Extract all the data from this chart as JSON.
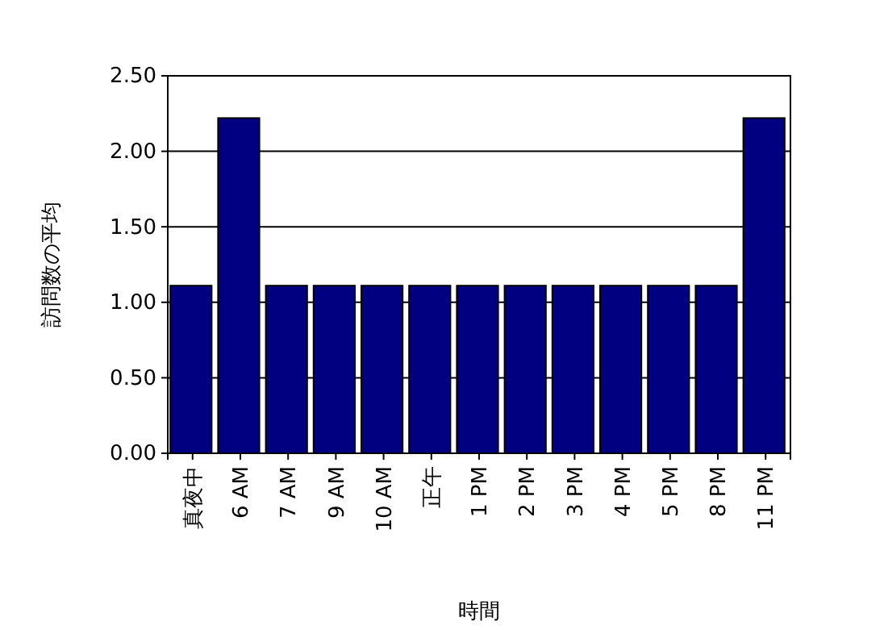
{
  "chart_data": {
    "type": "bar",
    "xlabel": "時間",
    "ylabel": "訪問数の平均",
    "categories": [
      "真夜中",
      "6 AM",
      "7 AM",
      "9 AM",
      "10 AM",
      "正午",
      "1 PM",
      "2 PM",
      "3 PM",
      "4 PM",
      "5 PM",
      "8 PM",
      "11 PM"
    ],
    "values": [
      1.11,
      2.22,
      1.11,
      1.11,
      1.11,
      1.11,
      1.11,
      1.11,
      1.11,
      1.11,
      1.11,
      1.11,
      2.22
    ],
    "color": "#000080",
    "ylim": [
      0,
      2.5
    ],
    "yticks": [
      {
        "value": 0,
        "label": "0.00"
      },
      {
        "value": 0.5,
        "label": "0.50"
      },
      {
        "value": 1,
        "label": "1.00"
      },
      {
        "value": 1.5,
        "label": "1.50"
      },
      {
        "value": 2,
        "label": "2.00"
      },
      {
        "value": 2.5,
        "label": "2.50"
      }
    ],
    "grid": true
  }
}
